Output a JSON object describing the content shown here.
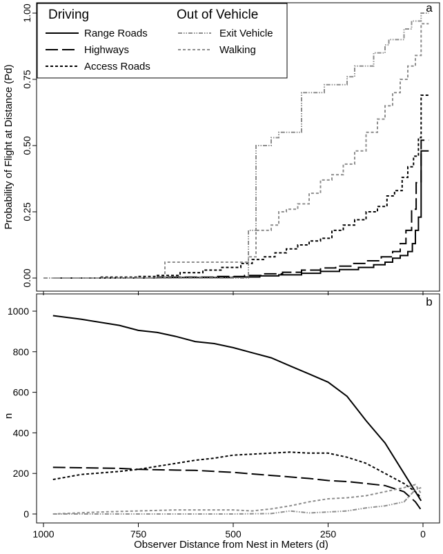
{
  "chart_data": [
    {
      "panel": "a",
      "type": "line",
      "step": true,
      "ylabel": "Probability of Flight at Distance (Pd)",
      "xlim": [
        1000,
        -20
      ],
      "ylim": [
        0,
        1
      ],
      "y_ticks": [
        "0.00",
        "0.25",
        "0.50",
        "0.75",
        "1.00"
      ],
      "x_ticks": [
        1000,
        750,
        500,
        250,
        0
      ],
      "x_tick_labels_shown": false,
      "legend": {
        "position": "top-left",
        "groups": [
          {
            "title": "Driving",
            "entries": [
              "Range Roads",
              "Highways",
              "Access Roads"
            ]
          },
          {
            "title": "Out of Vehicle",
            "entries": [
              "Exit Vehicle",
              "Walking"
            ]
          }
        ]
      },
      "series": [
        {
          "name": "Range Roads",
          "color": "#000000",
          "dash": "solid",
          "x": [
            975,
            700,
            500,
            430,
            380,
            320,
            270,
            220,
            170,
            130,
            100,
            80,
            60,
            40,
            28,
            20,
            12,
            5
          ],
          "y": [
            0.0,
            0.002,
            0.004,
            0.008,
            0.012,
            0.018,
            0.025,
            0.032,
            0.04,
            0.05,
            0.06,
            0.075,
            0.085,
            0.1,
            0.13,
            0.18,
            0.23,
            0.48
          ]
        },
        {
          "name": "Highways",
          "color": "#000000",
          "dash": "longdash",
          "x": [
            975,
            700,
            550,
            470,
            420,
            370,
            320,
            270,
            230,
            190,
            150,
            110,
            80,
            60,
            45,
            30,
            18,
            5
          ],
          "y": [
            0.0,
            0.003,
            0.006,
            0.01,
            0.016,
            0.022,
            0.03,
            0.038,
            0.045,
            0.055,
            0.065,
            0.08,
            0.1,
            0.13,
            0.18,
            0.26,
            0.36,
            0.52
          ]
        },
        {
          "name": "Access Roads",
          "color": "#000000",
          "dash": "short",
          "x": [
            975,
            850,
            750,
            700,
            640,
            580,
            530,
            480,
            450,
            420,
            390,
            360,
            330,
            300,
            270,
            240,
            210,
            180,
            150,
            120,
            95,
            75,
            55,
            40,
            25,
            12,
            5
          ],
          "y": [
            0.0,
            0.003,
            0.006,
            0.01,
            0.02,
            0.03,
            0.04,
            0.055,
            0.07,
            0.08,
            0.095,
            0.11,
            0.125,
            0.14,
            0.15,
            0.18,
            0.2,
            0.22,
            0.25,
            0.27,
            0.31,
            0.33,
            0.38,
            0.42,
            0.46,
            0.53,
            0.69
          ]
        },
        {
          "name": "Exit Vehicle",
          "color": "#8c8c8c",
          "dash": "dashdotdot",
          "x": [
            1000,
            500,
            460,
            440,
            400,
            380,
            340,
            320,
            280,
            260,
            220,
            200,
            180,
            150,
            130,
            100,
            90,
            50,
            30,
            5
          ],
          "y": [
            0.0,
            0.0,
            0.18,
            0.5,
            0.53,
            0.55,
            0.55,
            0.7,
            0.7,
            0.73,
            0.73,
            0.76,
            0.8,
            0.8,
            0.85,
            0.88,
            0.9,
            0.94,
            0.97,
            1.0
          ]
        },
        {
          "name": "Walking",
          "color": "#8c8c8c",
          "dash": "short",
          "x": [
            975,
            680,
            460,
            440,
            400,
            380,
            360,
            330,
            300,
            270,
            240,
            210,
            180,
            150,
            120,
            100,
            80,
            60,
            40,
            20,
            5
          ],
          "y": [
            0.0,
            0.06,
            0.08,
            0.18,
            0.2,
            0.25,
            0.26,
            0.28,
            0.32,
            0.37,
            0.39,
            0.43,
            0.48,
            0.55,
            0.6,
            0.65,
            0.7,
            0.75,
            0.8,
            0.84,
            0.96
          ]
        }
      ]
    },
    {
      "panel": "b",
      "type": "line",
      "step": false,
      "xlabel": "Observer Distance from Nest in Meters (d)",
      "ylabel": "n",
      "xlim": [
        1000,
        -20
      ],
      "ylim": [
        0,
        1000
      ],
      "y_ticks": [
        0,
        200,
        400,
        600,
        800,
        1000
      ],
      "x_ticks": [
        1000,
        750,
        500,
        250,
        0
      ],
      "series": [
        {
          "name": "Range Roads",
          "color": "#000000",
          "dash": "solid",
          "x": [
            975,
            900,
            800,
            750,
            700,
            650,
            600,
            550,
            500,
            450,
            400,
            350,
            300,
            250,
            200,
            150,
            100,
            50,
            20,
            5
          ],
          "y": [
            978,
            960,
            930,
            905,
            895,
            875,
            850,
            840,
            820,
            795,
            770,
            730,
            690,
            650,
            580,
            460,
            350,
            200,
            110,
            65
          ]
        },
        {
          "name": "Highways",
          "color": "#000000",
          "dash": "longdash",
          "x": [
            975,
            900,
            800,
            750,
            700,
            600,
            500,
            400,
            300,
            250,
            200,
            150,
            100,
            50,
            20,
            5
          ],
          "y": [
            230,
            228,
            225,
            220,
            218,
            215,
            205,
            190,
            175,
            165,
            160,
            150,
            140,
            110,
            60,
            20
          ]
        },
        {
          "name": "Access Roads",
          "color": "#000000",
          "dash": "short",
          "x": [
            975,
            900,
            800,
            750,
            700,
            650,
            600,
            550,
            500,
            450,
            400,
            350,
            300,
            250,
            200,
            150,
            100,
            50,
            20,
            5
          ],
          "y": [
            170,
            195,
            210,
            220,
            235,
            250,
            265,
            275,
            290,
            295,
            300,
            305,
            300,
            300,
            280,
            250,
            200,
            150,
            110,
            80
          ]
        },
        {
          "name": "Exit Vehicle",
          "color": "#8c8c8c",
          "dash": "dashdotdot",
          "x": [
            975,
            800,
            700,
            600,
            500,
            400,
            350,
            300,
            250,
            200,
            150,
            100,
            50,
            20,
            5
          ],
          "y": [
            0,
            0,
            0,
            0,
            0,
            2,
            15,
            5,
            10,
            15,
            30,
            40,
            60,
            120,
            130
          ]
        },
        {
          "name": "Walking",
          "color": "#8c8c8c",
          "dash": "short",
          "x": [
            975,
            850,
            750,
            650,
            600,
            500,
            450,
            400,
            350,
            300,
            250,
            200,
            150,
            100,
            50,
            20,
            5
          ],
          "y": [
            0,
            10,
            15,
            20,
            20,
            20,
            15,
            25,
            40,
            60,
            75,
            80,
            90,
            110,
            130,
            145,
            100
          ]
        }
      ]
    }
  ],
  "panels": [
    {
      "letter": "a",
      "ylabel": "Probability of Flight at Distance (Pd)"
    },
    {
      "letter": "b",
      "ylabel": "n",
      "xlabel": "Observer Distance from Nest in Meters (d)"
    }
  ],
  "legend": {
    "driving_title": "Driving",
    "outside_title": "Out of Vehicle",
    "items": [
      {
        "label": "Range Roads",
        "color": "#000000",
        "dash": "solid"
      },
      {
        "label": "Highways",
        "color": "#000000",
        "dash": "longdash"
      },
      {
        "label": "Access Roads",
        "color": "#000000",
        "dash": "short"
      },
      {
        "label": "Exit Vehicle",
        "color": "#8c8c8c",
        "dash": "dashdotdot"
      },
      {
        "label": "Walking",
        "color": "#8c8c8c",
        "dash": "short"
      }
    ]
  },
  "styles": {
    "solid": "",
    "longdash": "18 6",
    "short": "4 3",
    "dashdotdot": "6 2 1.5 2 1.5 2"
  }
}
